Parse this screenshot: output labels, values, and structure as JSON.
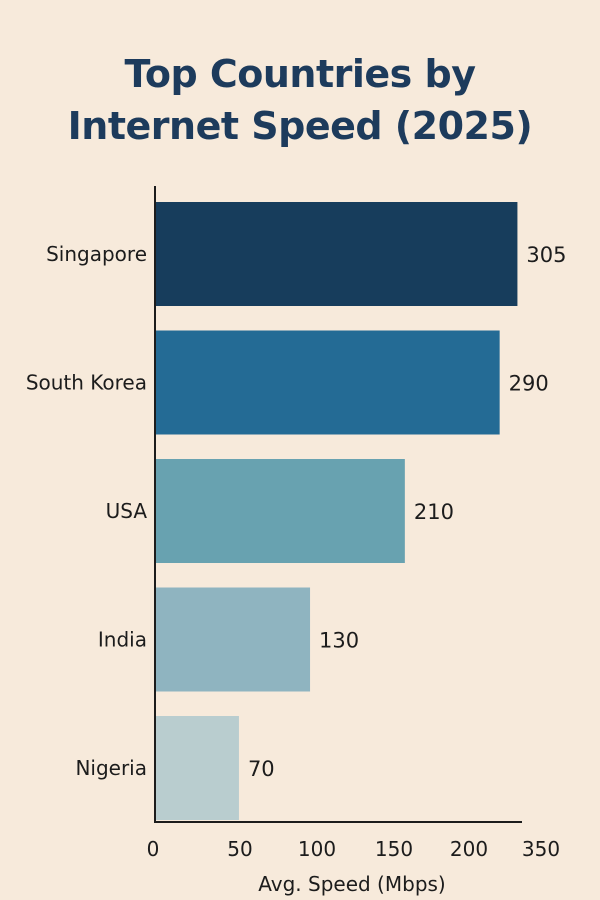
{
  "chart_data": {
    "type": "bar",
    "orientation": "horizontal",
    "title": "Top Countries by Internet Speed (2025)",
    "title_lines": [
      "Top Countries by",
      "Internet Speed (2025)"
    ],
    "xlabel": "Avg. Speed (Mbps)",
    "ylabel": "",
    "categories": [
      "Singapore",
      "South Korea",
      "USA",
      "India",
      "Nigeria"
    ],
    "values": [
      305,
      290,
      210,
      130,
      70
    ],
    "value_labels": [
      "305",
      "290",
      "210",
      "130",
      "70"
    ],
    "bar_colors": [
      "#173d5c",
      "#246b95",
      "#68a2b0",
      "#8fb4c0",
      "#b9cdcf"
    ],
    "xticks": [
      0,
      50,
      100,
      150,
      200,
      350
    ],
    "xlim": [
      0,
      350
    ],
    "grid": false,
    "legend": "none"
  }
}
